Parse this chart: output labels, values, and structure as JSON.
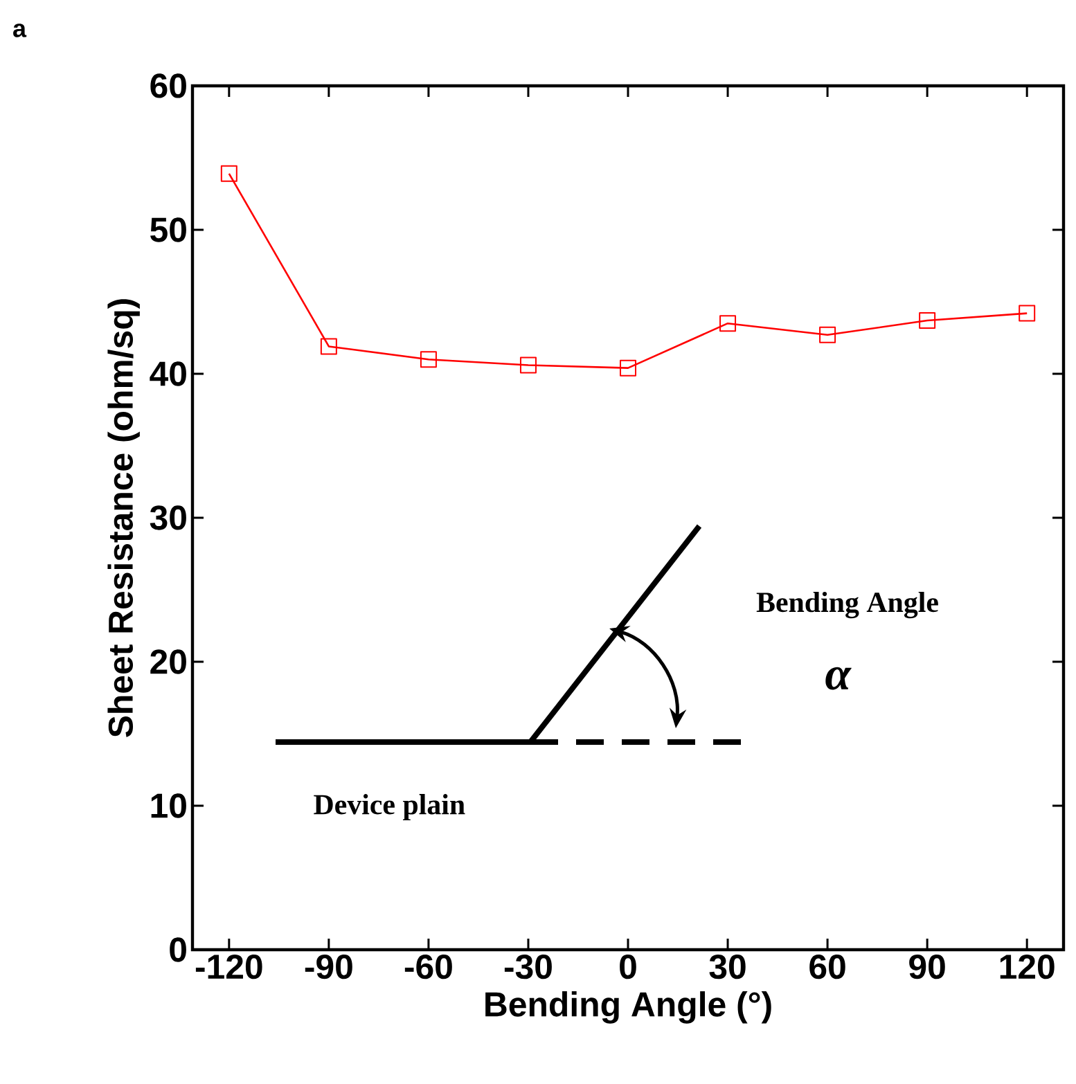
{
  "chart_data": {
    "type": "line",
    "xlabel": "Bending Angle (°)",
    "ylabel": "Sheet Resistance (ohm/sq)",
    "x": [
      -120,
      -90,
      -60,
      -30,
      0,
      30,
      60,
      90,
      120
    ],
    "series": [
      {
        "color": "#ff0000",
        "values": [
          53.9,
          41.9,
          41.0,
          40.6,
          40.4,
          43.5,
          42.7,
          43.7,
          44.2
        ]
      }
    ],
    "xlim": [
      -131,
      131
    ],
    "ylim": [
      0,
      60
    ],
    "xticks": [
      -120,
      -90,
      -60,
      -30,
      0,
      30,
      60,
      90,
      120
    ],
    "yticks": [
      0,
      10,
      20,
      30,
      40,
      50,
      60
    ],
    "marker": "square",
    "line_style": "solid",
    "annotations": [
      "a",
      "Bending Angle",
      "α",
      "Device plain"
    ]
  }
}
